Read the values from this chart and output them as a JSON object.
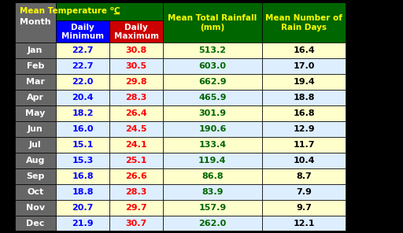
{
  "months": [
    "Jan",
    "Feb",
    "Mar",
    "Apr",
    "May",
    "Jun",
    "Jul",
    "Aug",
    "Sep",
    "Oct",
    "Nov",
    "Dec"
  ],
  "daily_min": [
    22.7,
    22.7,
    22.0,
    20.4,
    18.2,
    16.0,
    15.1,
    15.3,
    16.8,
    18.8,
    20.7,
    21.9
  ],
  "daily_max": [
    30.8,
    30.5,
    29.8,
    28.3,
    26.4,
    24.5,
    24.1,
    25.1,
    26.6,
    28.3,
    29.7,
    30.7
  ],
  "rainfall": [
    513.2,
    603.0,
    662.9,
    465.9,
    301.9,
    190.6,
    133.4,
    119.4,
    86.8,
    83.9,
    157.9,
    262.0
  ],
  "rain_days": [
    16.4,
    17.0,
    19.4,
    18.8,
    16.8,
    12.9,
    11.7,
    10.4,
    8.7,
    7.9,
    9.7,
    12.1
  ],
  "header_bg": "#006600",
  "header_text": "#FFFF00",
  "subheader_min_bg": "#0000FF",
  "subheader_max_bg": "#CC0000",
  "subheader_text": "#FFFFFF",
  "month_col_bg": "#666666",
  "month_col_text": "#FFFFFF",
  "row_bg_odd": "#FFFFCC",
  "row_bg_even": "#DDEEFF",
  "min_text_color": "#0000FF",
  "max_text_color": "#FF0000",
  "rainfall_text_color": "#006600",
  "rain_days_text_color": "#000000",
  "border_color": "#000000"
}
